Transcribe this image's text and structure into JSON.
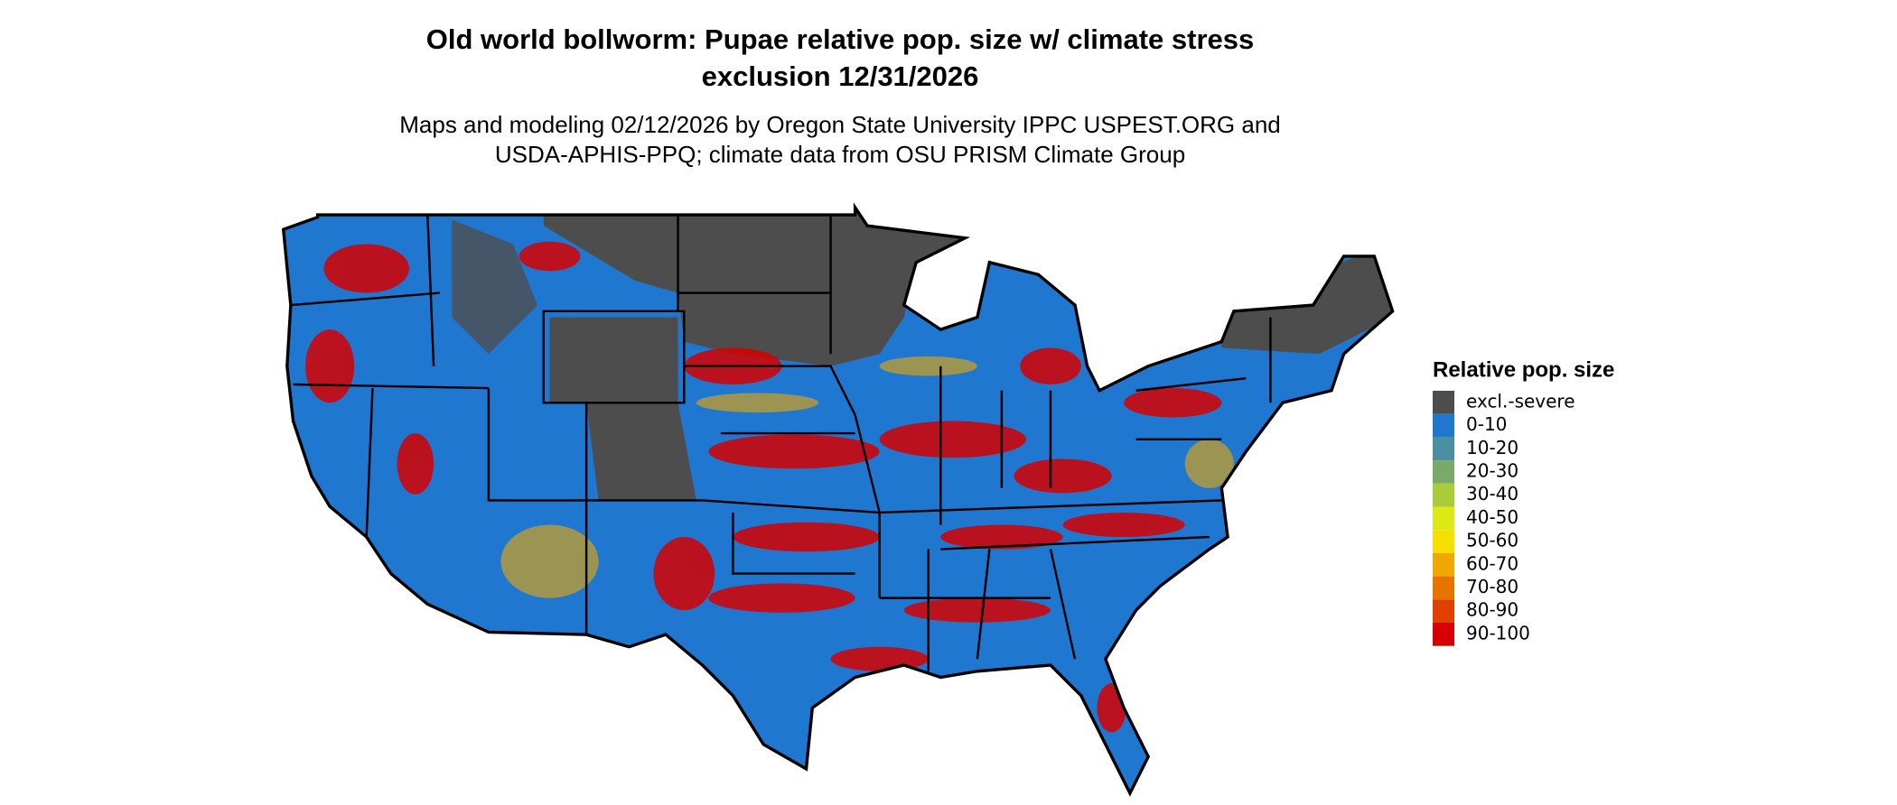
{
  "title": [
    "Old world bollworm: Pupae relative pop. size w/ climate stress",
    "exclusion 12/31/2026"
  ],
  "subtitle": [
    "Maps and modeling 02/12/2026 by Oregon State University IPPC USPEST.ORG and",
    "USDA-APHIS-PPQ; climate data from OSU PRISM Climate Group"
  ],
  "legend": {
    "title": "Relative pop. size",
    "items": [
      {
        "label": "excl.-severe",
        "color": "#4d4d4d"
      },
      {
        "label": "0-10",
        "color": "#1f77d0"
      },
      {
        "label": "10-20",
        "color": "#4a8fa0"
      },
      {
        "label": "20-30",
        "color": "#7aaa6a"
      },
      {
        "label": "30-40",
        "color": "#aacc3a"
      },
      {
        "label": "40-50",
        "color": "#dcea14"
      },
      {
        "label": "50-60",
        "color": "#f7df00"
      },
      {
        "label": "60-70",
        "color": "#f0a800"
      },
      {
        "label": "70-80",
        "color": "#e87400"
      },
      {
        "label": "80-90",
        "color": "#e04000"
      },
      {
        "label": "90-100",
        "color": "#d60000"
      }
    ]
  }
}
